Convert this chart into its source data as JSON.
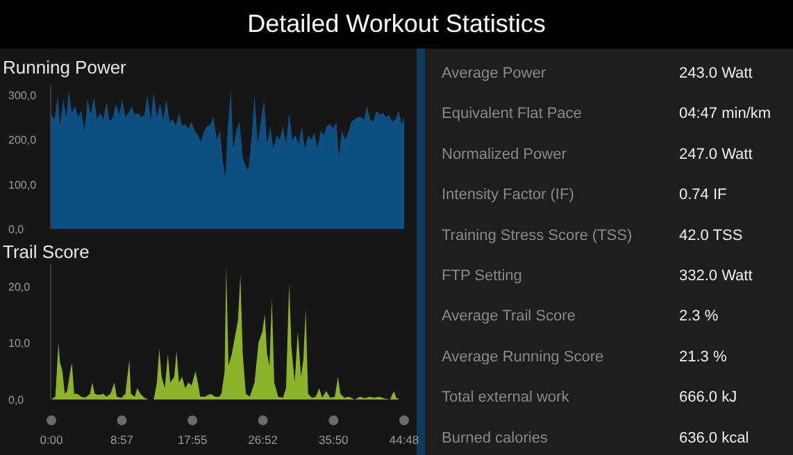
{
  "chart_data": [
    {
      "type": "area",
      "title": "Running Power",
      "xlim": [
        0,
        44.8
      ],
      "ylim": [
        0,
        320
      ],
      "yticks": [
        {
          "value": 0,
          "label": "0,0"
        },
        {
          "value": 100,
          "label": "100,0"
        },
        {
          "value": 200,
          "label": "200,0"
        },
        {
          "value": 300,
          "label": "300,0"
        }
      ],
      "tick_labels": "y",
      "series": [
        {
          "color": "#0d4f80",
          "x": [
            0,
            0.4,
            0.8,
            1.1,
            1.5,
            1.9,
            2.2,
            2.6,
            3.0,
            3.4,
            3.8,
            4.2,
            4.6,
            5.0,
            5.4,
            5.8,
            6.2,
            6.6,
            7.0,
            7.4,
            7.8,
            8.2,
            8.6,
            9.0,
            9.4,
            9.8,
            10.2,
            10.6,
            11.0,
            11.4,
            11.8,
            12.2,
            12.6,
            13.0,
            13.4,
            13.8,
            14.2,
            14.6,
            15.0,
            15.4,
            15.8,
            16.2,
            16.6,
            17.0,
            17.4,
            17.8,
            18.2,
            18.6,
            19.0,
            19.4,
            19.8,
            20.2,
            20.6,
            21.0,
            21.4,
            21.8,
            22.1,
            22.4,
            22.8,
            23.1,
            23.5,
            23.9,
            24.3,
            24.7,
            25.0,
            25.4,
            25.8,
            26.2,
            26.6,
            27.0,
            27.4,
            27.8,
            28.2,
            28.6,
            29.0,
            29.4,
            29.8,
            30.2,
            30.6,
            31.0,
            31.4,
            31.8,
            32.2,
            32.6,
            33.0,
            33.4,
            33.8,
            34.2,
            34.6,
            35.0,
            35.4,
            35.8,
            36.2,
            36.5,
            36.9,
            37.3,
            37.7,
            38.1,
            38.5,
            38.9,
            39.3,
            39.7,
            40.1,
            40.5,
            40.9,
            41.3,
            41.7,
            42.1,
            42.5,
            42.9,
            43.3,
            43.7,
            44.1,
            44.5,
            44.8
          ],
          "values": [
            255,
            245,
            300,
            230,
            290,
            250,
            310,
            260,
            275,
            250,
            265,
            220,
            290,
            255,
            295,
            245,
            260,
            245,
            285,
            240,
            250,
            280,
            255,
            290,
            250,
            260,
            275,
            255,
            260,
            250,
            255,
            300,
            245,
            305,
            250,
            280,
            245,
            290,
            240,
            245,
            230,
            260,
            230,
            235,
            225,
            240,
            220,
            210,
            195,
            220,
            230,
            235,
            250,
            200,
            220,
            150,
            115,
            230,
            310,
            180,
            220,
            240,
            160,
            140,
            130,
            200,
            300,
            190,
            240,
            290,
            190,
            230,
            180,
            210,
            200,
            230,
            190,
            260,
            200,
            210,
            190,
            230,
            180,
            210,
            200,
            215,
            180,
            220,
            210,
            230,
            235,
            225,
            240,
            160,
            220,
            200,
            215,
            240,
            245,
            250,
            250,
            245,
            275,
            245,
            240,
            265,
            255,
            260,
            250,
            255,
            240,
            245,
            265,
            235,
            250
          ]
        }
      ]
    },
    {
      "type": "area",
      "title": "Trail Score",
      "xlim": [
        0,
        44.8
      ],
      "xticks": [
        {
          "value": 0,
          "label": "0:00"
        },
        {
          "value": 8.95,
          "label": "8:57"
        },
        {
          "value": 17.917,
          "label": "17:55"
        },
        {
          "value": 26.867,
          "label": "26:52"
        },
        {
          "value": 35.833,
          "label": "35:50"
        },
        {
          "value": 44.8,
          "label": "44:48"
        }
      ],
      "ylim": [
        0,
        24
      ],
      "yticks": [
        {
          "value": 0,
          "label": "0,0"
        },
        {
          "value": 10,
          "label": "10,0"
        },
        {
          "value": 20,
          "label": "20,0"
        }
      ],
      "series": [
        {
          "color": "#8db32a",
          "x": [
            0,
            0.5,
            0.9,
            1.1,
            1.4,
            1.7,
            2.0,
            2.4,
            2.6,
            2.9,
            3.3,
            3.8,
            4.3,
            4.9,
            5.2,
            5.5,
            6.0,
            6.6,
            7.0,
            7.5,
            8.0,
            8.3,
            8.9,
            9.4,
            9.9,
            10.1,
            10.6,
            10.9,
            11.3,
            11.8,
            12.3,
            13.0,
            13.4,
            13.7,
            14.0,
            14.4,
            14.8,
            15.1,
            15.6,
            15.9,
            16.2,
            16.6,
            17.0,
            17.4,
            17.8,
            18.3,
            18.6,
            18.9,
            19.5,
            20.2,
            20.8,
            21.3,
            21.6,
            22.0,
            22.2,
            22.5,
            22.9,
            23.3,
            23.7,
            24.0,
            24.3,
            24.7,
            25.2,
            25.8,
            26.3,
            26.8,
            27.1,
            27.4,
            27.7,
            28.0,
            28.3,
            28.8,
            29.4,
            29.8,
            30.2,
            30.5,
            30.9,
            31.3,
            31.7,
            32.0,
            32.3,
            32.6,
            33.1,
            33.6,
            34.0,
            34.4,
            34.9,
            35.4,
            36.0,
            36.4,
            36.7,
            37.2,
            37.8,
            38.5,
            39.2,
            39.8,
            40.4,
            41.0,
            41.6,
            42.2,
            43.0,
            43.5,
            43.8,
            44.2,
            44.8
          ],
          "values": [
            0,
            0.5,
            10,
            6.5,
            5,
            1,
            1.5,
            5,
            6.5,
            1,
            1,
            0.5,
            0.3,
            1,
            3,
            1,
            0.8,
            1,
            0.5,
            1,
            3,
            0.5,
            0.3,
            1,
            7,
            1,
            0.5,
            2,
            1,
            0.3,
            0,
            0,
            3,
            9,
            4,
            2,
            8,
            3,
            4,
            8.5,
            3,
            4,
            2,
            3,
            2.5,
            5,
            3,
            0.5,
            0.5,
            1,
            0.5,
            0.5,
            1,
            5,
            23.5,
            6,
            8,
            11,
            14,
            22,
            8,
            1,
            0.5,
            3,
            10,
            12,
            15,
            8,
            6,
            18,
            3,
            0.5,
            0.3,
            2,
            20.5,
            9,
            3,
            12,
            4,
            7,
            16,
            1,
            0.3,
            0.5,
            2,
            0.3,
            1.5,
            0.3,
            0.5,
            4,
            1,
            0.3,
            0.5,
            0,
            0.5,
            0.2,
            0.5,
            0.3,
            0.5,
            0.2,
            0,
            1.5,
            0.3,
            0,
            0
          ]
        }
      ]
    },
    {
      "type": "other",
      "title": "Detailed Workout Statistics",
      "annotations": [
        "Average Power",
        "243.0 Watt",
        "Equivalent Flat Pace",
        "04:47 min/km",
        "Normalized Power",
        "247.0 Watt",
        "Intensity Factor (IF)",
        "0.74 IF",
        "Training Stress Score (TSS)",
        "42.0 TSS",
        "FTP Setting",
        "332.0 Watt",
        "Average Trail Score",
        "2.3 %",
        "Average Running Score",
        "21.3 %",
        "Total external work",
        "666.0 kJ",
        "Burned calories",
        "636.0 kcal"
      ]
    }
  ]
}
